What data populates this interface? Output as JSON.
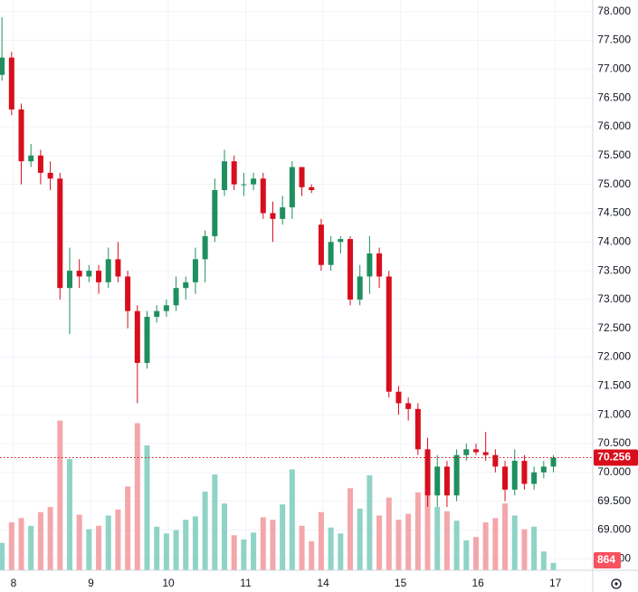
{
  "chart_data": {
    "type": "candlestick",
    "x": [
      0,
      1,
      2,
      3,
      4,
      5,
      6,
      7,
      8,
      9,
      10,
      11,
      12,
      13,
      14,
      15,
      16,
      17,
      18,
      19,
      20,
      21,
      22,
      23,
      24,
      25,
      26,
      27,
      28,
      29,
      30,
      31,
      32,
      33,
      34,
      35,
      36,
      37,
      38,
      39,
      40,
      41,
      42,
      43,
      44,
      45,
      46,
      47,
      48,
      49,
      50,
      51,
      52,
      53,
      54,
      55,
      56,
      57
    ],
    "open": [
      76.9,
      77.2,
      76.3,
      75.4,
      75.5,
      75.2,
      75.1,
      73.2,
      73.5,
      73.4,
      73.5,
      73.3,
      73.7,
      73.4,
      72.8,
      71.9,
      72.7,
      72.8,
      72.9,
      73.2,
      73.3,
      73.7,
      74.1,
      74.9,
      75.4,
      75.0,
      75.0,
      75.1,
      74.5,
      74.4,
      74.6,
      75.3,
      74.95,
      74.3,
      73.6,
      74.0,
      74.05,
      73.0,
      73.4,
      73.8,
      73.4,
      71.4,
      71.2,
      71.1,
      70.4,
      69.6,
      70.1,
      69.6,
      70.3,
      70.4,
      70.35,
      70.3,
      70.1,
      69.7,
      70.2,
      69.8,
      70.0,
      70.1
    ],
    "high": [
      77.9,
      77.3,
      76.4,
      75.7,
      75.6,
      75.4,
      75.2,
      73.9,
      73.7,
      73.6,
      73.6,
      73.9,
      74.0,
      73.5,
      72.9,
      72.8,
      72.9,
      73.0,
      73.4,
      73.4,
      73.9,
      74.2,
      75.1,
      75.6,
      75.5,
      75.2,
      75.2,
      75.2,
      74.7,
      74.8,
      75.4,
      75.3,
      75.0,
      74.4,
      74.1,
      74.1,
      74.1,
      73.6,
      74.1,
      73.9,
      73.5,
      71.5,
      71.3,
      71.2,
      70.6,
      70.3,
      70.2,
      70.4,
      70.5,
      70.5,
      70.7,
      70.4,
      70.2,
      70.4,
      70.3,
      70.1,
      70.2,
      70.3
    ],
    "low": [
      76.8,
      76.2,
      75.0,
      75.3,
      75.0,
      74.9,
      73.0,
      72.4,
      73.2,
      73.3,
      73.1,
      73.2,
      73.3,
      72.5,
      71.2,
      71.8,
      72.6,
      72.7,
      72.8,
      73.0,
      73.1,
      73.3,
      74.0,
      74.8,
      74.9,
      74.8,
      74.9,
      74.4,
      74.0,
      74.3,
      74.4,
      74.8,
      74.85,
      73.5,
      73.5,
      73.8,
      72.9,
      72.9,
      73.1,
      73.2,
      71.3,
      71.0,
      70.9,
      70.3,
      69.4,
      69.4,
      69.4,
      69.5,
      70.2,
      70.3,
      70.2,
      70.0,
      69.5,
      69.6,
      69.7,
      69.7,
      69.9,
      70.0
    ],
    "close": [
      77.2,
      76.3,
      75.4,
      75.5,
      75.2,
      75.1,
      73.2,
      73.5,
      73.4,
      73.5,
      73.3,
      73.7,
      73.4,
      72.8,
      71.9,
      72.7,
      72.8,
      72.9,
      73.2,
      73.3,
      73.7,
      74.1,
      74.9,
      75.4,
      75.0,
      75.0,
      75.1,
      74.5,
      74.4,
      74.6,
      75.3,
      74.95,
      74.9,
      73.6,
      74.0,
      74.05,
      73.0,
      73.4,
      73.8,
      73.4,
      71.4,
      71.2,
      71.1,
      70.4,
      69.6,
      70.1,
      69.6,
      70.3,
      70.4,
      70.35,
      70.3,
      70.1,
      69.7,
      70.2,
      69.8,
      70.0,
      70.1,
      70.256
    ],
    "volume": [
      3200,
      5600,
      6100,
      5200,
      6800,
      7400,
      17500,
      13000,
      6500,
      4800,
      5200,
      6400,
      7100,
      9800,
      17200,
      14600,
      5100,
      4300,
      4700,
      5900,
      6300,
      9200,
      11200,
      7800,
      4100,
      3600,
      4400,
      6200,
      5900,
      7700,
      11800,
      5200,
      3400,
      6800,
      5000,
      4300,
      9600,
      7200,
      11100,
      6400,
      8500,
      5900,
      6600,
      9100,
      11800,
      7400,
      6900,
      5800,
      3500,
      3900,
      5600,
      6100,
      7800,
      6400,
      4800,
      5100,
      2200,
      864
    ],
    "xticks": [
      {
        "value": 1.2,
        "label": "8"
      },
      {
        "value": 9.2,
        "label": "9"
      },
      {
        "value": 17.2,
        "label": "10"
      },
      {
        "value": 25.2,
        "label": "11"
      },
      {
        "value": 33.2,
        "label": "14"
      },
      {
        "value": 41.2,
        "label": "15"
      },
      {
        "value": 49.2,
        "label": "16"
      },
      {
        "value": 57.2,
        "label": "17"
      }
    ],
    "xlim": [
      -0.2,
      60.6
    ],
    "ylim": [
      68.3,
      78.2
    ],
    "yticks": [
      {
        "value": 78,
        "label": "78.000"
      },
      {
        "value": 77.5,
        "label": "77.500"
      },
      {
        "value": 77,
        "label": "77.000"
      },
      {
        "value": 76.5,
        "label": "76.500"
      },
      {
        "value": 76,
        "label": "76.000"
      },
      {
        "value": 75.5,
        "label": "75.500"
      },
      {
        "value": 75,
        "label": "75.000"
      },
      {
        "value": 74.5,
        "label": "74.500"
      },
      {
        "value": 74,
        "label": "74.000"
      },
      {
        "value": 73.5,
        "label": "73.500"
      },
      {
        "value": 73,
        "label": "73.000"
      },
      {
        "value": 72.5,
        "label": "72.500"
      },
      {
        "value": 72,
        "label": "72.000"
      },
      {
        "value": 71.5,
        "label": "71.500"
      },
      {
        "value": 71,
        "label": "71.000"
      },
      {
        "value": 70.5,
        "label": "70.500"
      },
      {
        "value": 70,
        "label": "70.000"
      },
      {
        "value": 69.5,
        "label": "69.500"
      },
      {
        "value": 69,
        "label": "69.000"
      },
      {
        "value": 68.5,
        "label": "68.500"
      }
    ],
    "volume_lim": [
      0,
      20000
    ],
    "grid": true,
    "up_color": "#1f8f5f",
    "down_color": "#d80e1c",
    "volume_up_color": "#8fd3c6",
    "volume_down_color": "#f4a7ab"
  }
}
